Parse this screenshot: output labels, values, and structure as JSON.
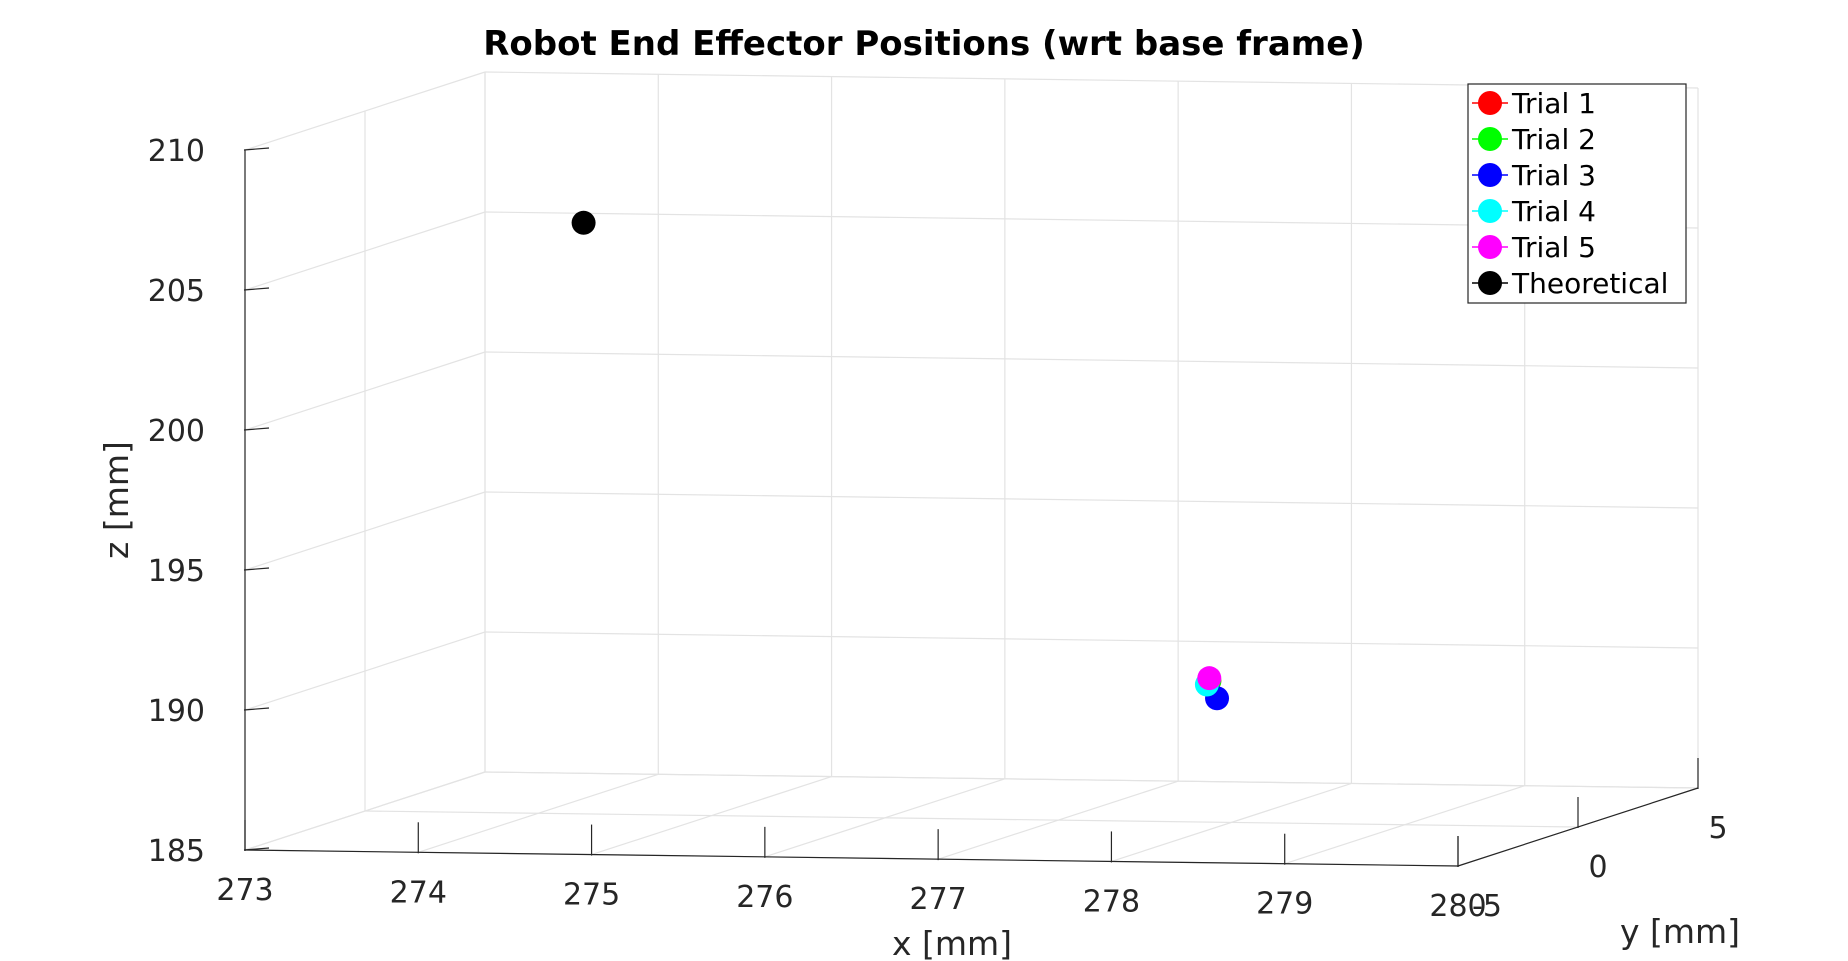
{
  "chart_data": {
    "type": "scatter",
    "title": "Robot End Effector Positions (wrt base frame)",
    "xlabel": "x [mm]",
    "ylabel": "y [mm]",
    "zlabel": "z [mm]",
    "xlim": [
      273,
      280
    ],
    "ylim": [
      -5,
      5
    ],
    "zlim": [
      185,
      210
    ],
    "x_ticks": [
      "273",
      "274",
      "275",
      "276",
      "277",
      "278",
      "279",
      "280"
    ],
    "y_ticks": [
      "-5",
      "0",
      "5"
    ],
    "z_ticks": [
      "185",
      "190",
      "195",
      "200",
      "205",
      "210"
    ],
    "grid": true,
    "legend_position": "top-right",
    "series": [
      {
        "name": "Trial 1",
        "color": "#ff0000",
        "points": [
          {
            "x": 277.9,
            "y": -0.2,
            "z": 190.1
          }
        ]
      },
      {
        "name": "Trial 2",
        "color": "#00ff00",
        "points": [
          {
            "x": 277.9,
            "y": -0.2,
            "z": 190.1
          }
        ]
      },
      {
        "name": "Trial 3",
        "color": "#0000ff",
        "points": [
          {
            "x": 278.0,
            "y": -0.6,
            "z": 189.6
          }
        ]
      },
      {
        "name": "Trial 4",
        "color": "#00ffff",
        "points": [
          {
            "x": 277.9,
            "y": -0.3,
            "z": 190.0
          }
        ]
      },
      {
        "name": "Trial 5",
        "color": "#ff00ff",
        "points": [
          {
            "x": 277.9,
            "y": -0.2,
            "z": 190.2
          }
        ]
      },
      {
        "name": "Theoretical",
        "color": "#000000",
        "points": [
          {
            "x": 274.4,
            "y": -1.0,
            "z": 206.4
          }
        ]
      }
    ]
  }
}
